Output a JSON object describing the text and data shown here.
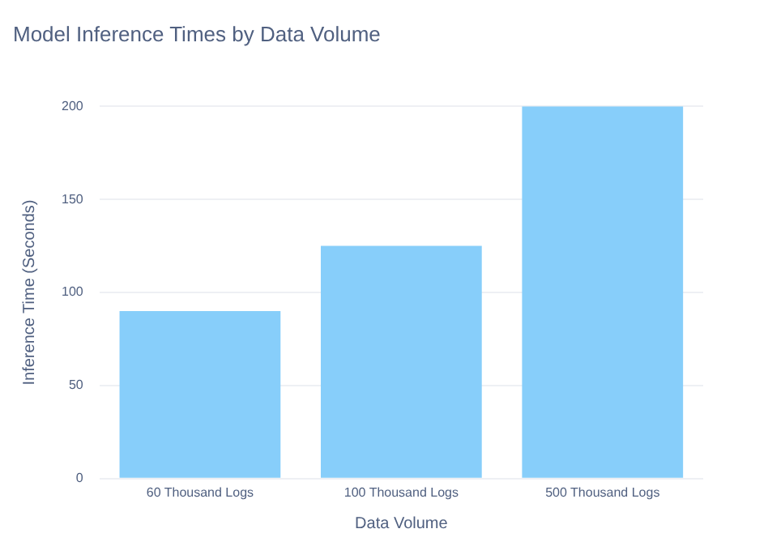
{
  "chart_data": {
    "type": "bar",
    "title": "Model Inference Times by Data Volume",
    "xlabel": "Data Volume",
    "ylabel": "Inference Time (Seconds)",
    "categories": [
      "60 Thousand Logs",
      "100 Thousand Logs",
      "500 Thousand Logs"
    ],
    "values": [
      90,
      125,
      200
    ],
    "color": "#87cefa",
    "ylim": [
      0,
      200
    ],
    "yticks": [
      0,
      50,
      100,
      150,
      200
    ],
    "grid": "y"
  }
}
